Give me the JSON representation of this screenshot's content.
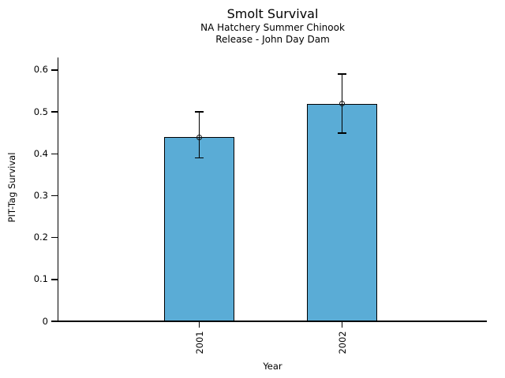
{
  "chart_data": {
    "type": "bar",
    "title": "Smolt Survival",
    "subtitle_lines": [
      "NA Hatchery Summer Chinook",
      "Release - John Day Dam"
    ],
    "xlabel": "Year",
    "ylabel": "PIT-Tag Survival",
    "categories": [
      "2001",
      "2002"
    ],
    "values": [
      0.44,
      0.52
    ],
    "error_low": [
      0.39,
      0.45
    ],
    "error_high": [
      0.5,
      0.59
    ],
    "ytick_labels": [
      "0",
      "0.1",
      "0.2",
      "0.3",
      "0.4",
      "0.5",
      "0.6"
    ],
    "ylim": [
      0,
      0.63
    ],
    "grid": false,
    "legend": false,
    "bar_color": "#5AACD6",
    "bar_edge_color": "#000000",
    "error_color": "#000000",
    "marker": "open-circle"
  }
}
